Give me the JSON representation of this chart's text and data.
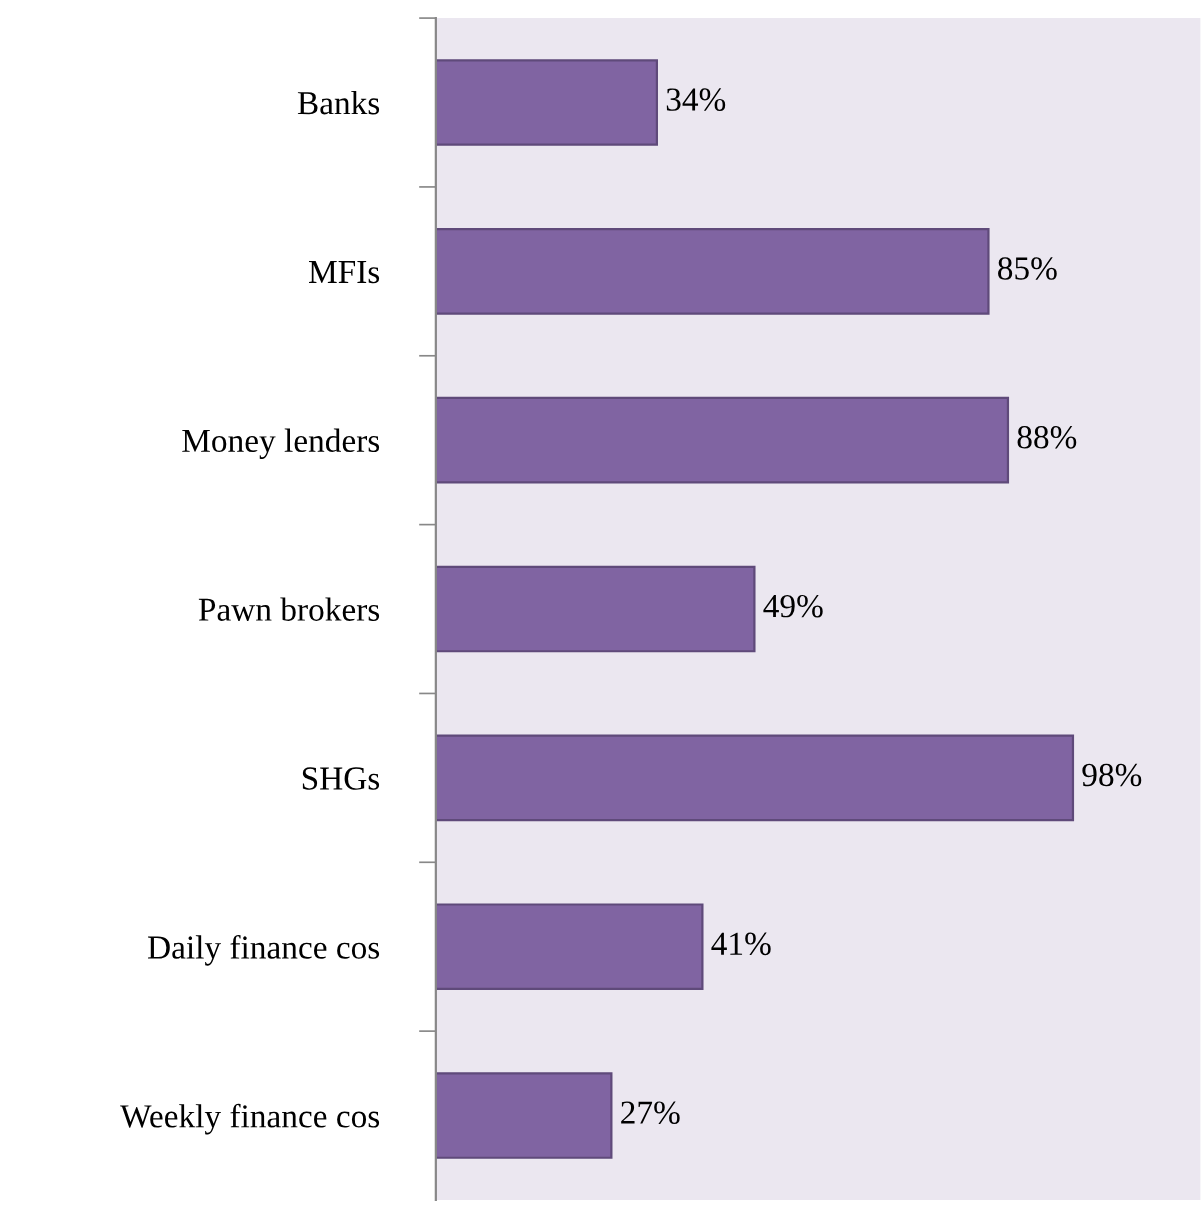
{
  "chart_data": {
    "type": "bar",
    "orientation": "horizontal",
    "categories": [
      "Banks",
      "MFIs",
      "Money lenders",
      "Pawn brokers",
      "SHGs",
      "Daily finance cos",
      "Weekly finance cos"
    ],
    "values": [
      34,
      85,
      88,
      49,
      98,
      41,
      27
    ],
    "value_labels": [
      "34%",
      "85%",
      "88%",
      "49%",
      "98%",
      "41%",
      "27%"
    ],
    "color": "#8064a2",
    "grid": false,
    "legend": false
  }
}
